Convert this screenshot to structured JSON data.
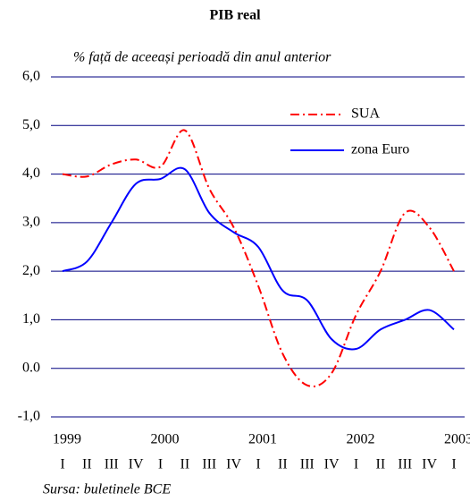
{
  "chart_data": {
    "type": "line",
    "title": "PIB real",
    "subtitle": "% față de aceeași perioadă din anul anterior",
    "source": "Sursa: buletinele BCE",
    "categories": [
      "I",
      "II",
      "III",
      "IV",
      "I",
      "II",
      "III",
      "IV",
      "I",
      "II",
      "III",
      "IV",
      "I",
      "II",
      "III",
      "IV",
      "I"
    ],
    "years": [
      "1999",
      "2000",
      "2001",
      "2002",
      "2003"
    ],
    "series": [
      {
        "name": "SUA",
        "color": "#ff0000",
        "dash": "dashdot",
        "values": [
          4.0,
          3.95,
          4.2,
          4.3,
          4.15,
          4.9,
          3.7,
          2.9,
          1.7,
          0.3,
          -0.35,
          -0.1,
          1.1,
          2.0,
          3.2,
          2.9,
          2.0
        ]
      },
      {
        "name": "zona Euro",
        "color": "#0000ff",
        "values": [
          2.0,
          2.2,
          3.0,
          3.8,
          3.9,
          4.1,
          3.2,
          2.8,
          2.5,
          1.6,
          1.4,
          0.6,
          0.4,
          0.8,
          1.0,
          1.2,
          0.8
        ]
      }
    ],
    "ylim": [
      -1,
      6
    ],
    "yticks": [
      {
        "value": -1,
        "label": "-1,0"
      },
      {
        "value": 0,
        "label": "0.0"
      },
      {
        "value": 1,
        "label": "1,0"
      },
      {
        "value": 2,
        "label": "2,0"
      },
      {
        "value": 3,
        "label": "3,0"
      },
      {
        "value": 4,
        "label": "4,0"
      },
      {
        "value": 5,
        "label": "5,0"
      },
      {
        "value": 6,
        "label": "6,0"
      }
    ],
    "grid": true,
    "smooth": true
  }
}
